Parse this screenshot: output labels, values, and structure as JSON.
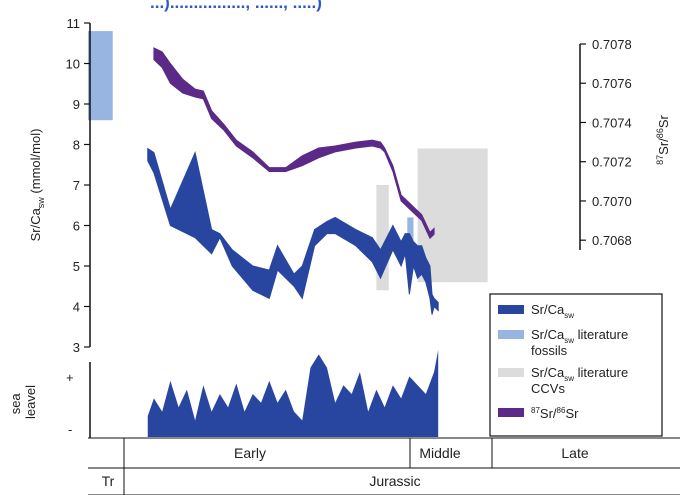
{
  "header_partial": "...)................, ......, .....)",
  "chart_data": {
    "type": "area",
    "left_axis": {
      "title": "Sr/Ca",
      "title_sub": "sw",
      "title_unit": " (mmol/mol)",
      "ylim": [
        3,
        11
      ],
      "ticks": [
        "11",
        "10",
        "9",
        "8",
        "7",
        "6",
        "5",
        "4",
        "3"
      ]
    },
    "right_axis": {
      "title_sup1": "87",
      "title_mid": "Sr/",
      "title_sup2": "86",
      "title_end": "Sr",
      "ylim": [
        0.70675,
        0.7078
      ],
      "ticks": [
        "0.7078",
        "0.7076",
        "0.7074",
        "0.7072",
        "0.7070",
        "0.7068"
      ]
    },
    "sea_level_axis": {
      "title_line1": "sea",
      "title_line2": "leavel",
      "plus": "+",
      "minus": "-"
    },
    "time_axis": {
      "epochs": [
        "Early",
        "Middle",
        "Late"
      ],
      "periods": [
        "Tr",
        "Jurassic"
      ]
    },
    "legend": [
      {
        "label": "Sr/Ca",
        "sub": "sw",
        "color": "#2846a0"
      },
      {
        "label_line1": "Sr/Ca",
        "sub": "sw",
        "label_line1_end": " literature",
        "label_line2": "fossils",
        "color": "#97b5e0"
      },
      {
        "label_line1": "Sr/Ca",
        "sub": "sw",
        "label_line1_end": " literature",
        "label_line2": "CCVs",
        "color": "#dcdcdc"
      },
      {
        "sup1": "87",
        "mid": "Sr/",
        "sup2": "86",
        "end": "Sr",
        "color": "#5b2a88"
      }
    ],
    "colors": {
      "srca_band": "#2846a0",
      "fossils_box": "#97b5e0",
      "ccv_box": "#dcdcdc",
      "strontium_band": "#5b2a88",
      "sea_level_fill": "#2846a0"
    },
    "series": [
      {
        "name": "Sr/Ca",
        "kind": "band",
        "x": [
          0.145,
          0.16,
          0.2,
          0.26,
          0.3,
          0.32,
          0.35,
          0.4,
          0.44,
          0.46,
          0.5,
          0.52,
          0.55,
          0.58,
          0.6,
          0.65,
          0.69,
          0.71,
          0.74,
          0.76,
          0.77,
          0.78,
          0.79,
          0.8,
          0.81,
          0.82,
          0.83,
          0.835,
          0.84,
          0.85
        ],
        "lower": [
          7.6,
          7.3,
          6.0,
          5.7,
          5.3,
          5.7,
          5.0,
          4.4,
          4.2,
          4.9,
          4.5,
          4.2,
          5.5,
          5.8,
          5.8,
          5.5,
          5.1,
          4.7,
          5.4,
          5.0,
          5.3,
          4.3,
          5.0,
          4.7,
          4.8,
          4.6,
          4.2,
          3.8,
          4.0,
          3.9
        ],
        "upper": [
          7.9,
          7.8,
          6.4,
          7.8,
          5.9,
          5.8,
          5.4,
          5.0,
          4.9,
          5.5,
          4.8,
          5.0,
          5.9,
          6.1,
          6.2,
          5.9,
          5.7,
          5.4,
          6.0,
          5.6,
          5.8,
          5.8,
          5.6,
          5.5,
          5.5,
          5.2,
          5.0,
          4.3,
          4.2,
          4.1
        ]
      },
      {
        "name": "Sr isotope",
        "kind": "band",
        "x": [
          0.16,
          0.18,
          0.2,
          0.23,
          0.26,
          0.28,
          0.3,
          0.33,
          0.36,
          0.4,
          0.44,
          0.48,
          0.52,
          0.56,
          0.6,
          0.65,
          0.69,
          0.71,
          0.72,
          0.74,
          0.76,
          0.77,
          0.79,
          0.81,
          0.83,
          0.84
        ],
        "lower": [
          0.70772,
          0.70768,
          0.7076,
          0.70755,
          0.70753,
          0.70752,
          0.70742,
          0.70736,
          0.70728,
          0.70722,
          0.70715,
          0.70715,
          0.70718,
          0.70722,
          0.70725,
          0.70727,
          0.70728,
          0.70727,
          0.70725,
          0.70715,
          0.707,
          0.70698,
          0.70694,
          0.7069,
          0.70681,
          0.70683
        ],
        "upper": [
          0.70778,
          0.70776,
          0.7077,
          0.70762,
          0.70757,
          0.70756,
          0.70746,
          0.70739,
          0.70731,
          0.70725,
          0.70717,
          0.70717,
          0.70723,
          0.70727,
          0.70728,
          0.7073,
          0.70731,
          0.7073,
          0.70727,
          0.70718,
          0.70703,
          0.70701,
          0.70697,
          0.70693,
          0.70684,
          0.70686
        ]
      },
      {
        "name": "sea level",
        "kind": "envelope",
        "x": [
          0.145,
          0.16,
          0.18,
          0.2,
          0.22,
          0.24,
          0.26,
          0.28,
          0.3,
          0.32,
          0.34,
          0.36,
          0.38,
          0.4,
          0.42,
          0.44,
          0.46,
          0.48,
          0.5,
          0.52,
          0.54,
          0.56,
          0.58,
          0.6,
          0.62,
          0.64,
          0.66,
          0.68,
          0.7,
          0.72,
          0.74,
          0.76,
          0.78,
          0.8,
          0.82,
          0.84,
          0.85
        ],
        "level": [
          0.25,
          0.45,
          0.3,
          0.65,
          0.35,
          0.55,
          0.2,
          0.6,
          0.3,
          0.5,
          0.35,
          0.62,
          0.3,
          0.5,
          0.4,
          0.65,
          0.4,
          0.55,
          0.3,
          0.2,
          0.8,
          0.95,
          0.8,
          0.4,
          0.6,
          0.5,
          0.75,
          0.3,
          0.55,
          0.35,
          0.6,
          0.45,
          0.7,
          0.6,
          0.5,
          0.75,
          1.0
        ]
      }
    ],
    "literature_boxes": [
      {
        "name": "fossils",
        "x": [
          0.0,
          0.06
        ],
        "y": [
          8.6,
          10.8
        ]
      },
      {
        "name": "CCVs",
        "x": [
          0.7,
          0.73
        ],
        "y": [
          4.4,
          7.0
        ]
      },
      {
        "name": "fossils",
        "x": [
          0.775,
          0.79
        ],
        "y": [
          5.0,
          6.2
        ]
      },
      {
        "name": "CCVs",
        "x": [
          0.8,
          0.97
        ],
        "y": [
          4.6,
          7.9
        ]
      }
    ]
  }
}
